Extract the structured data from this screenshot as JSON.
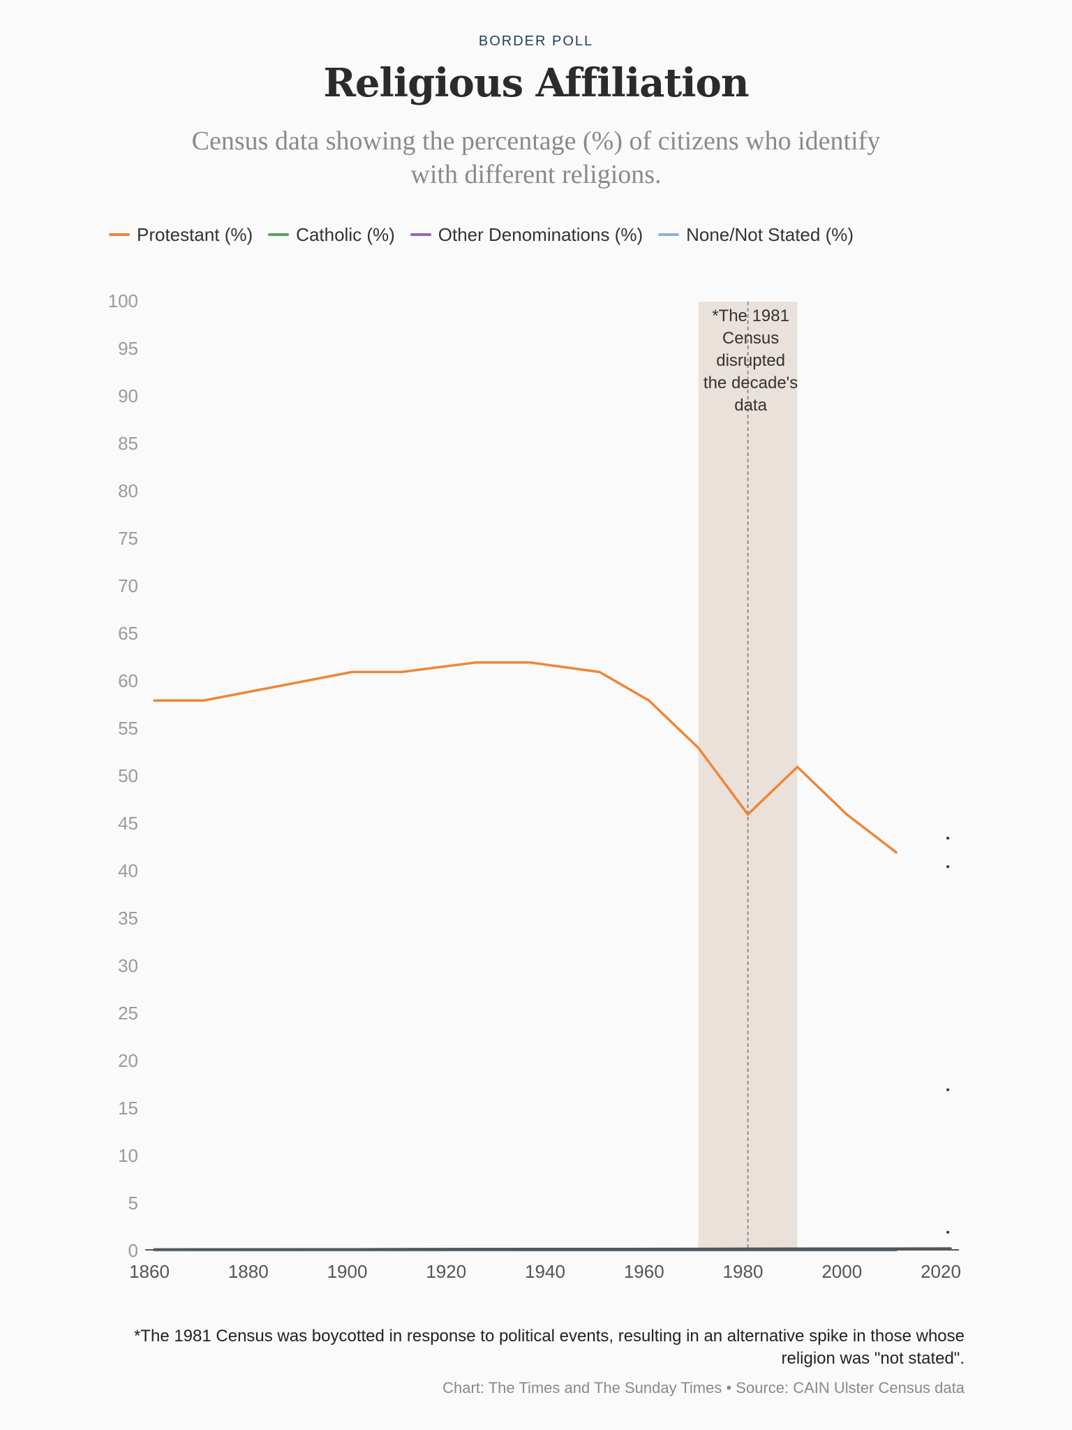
{
  "header": {
    "kicker": "BORDER POLL",
    "title": "Religious Affiliation",
    "subtitle": "Census data showing the percentage (%) of citizens who identify with different religions."
  },
  "footer": {
    "footnote": "*The 1981 Census was boycotted in response to political events, resulting in an alternative spike in those whose religion was \"not stated\".",
    "source": "Chart: The Times and The Sunday Times • Source: CAIN Ulster Census data"
  },
  "chart_data": {
    "type": "line",
    "title": "Religious Affiliation",
    "subtitle": "Census data showing the percentage (%) of citizens who identify with different religions.",
    "xlabel": "",
    "ylabel": "",
    "xlim": [
      1860,
      2022
    ],
    "ylim": [
      0,
      100
    ],
    "x_ticks": [
      "1860",
      "1880",
      "1900",
      "1920",
      "1940",
      "1960",
      "1980",
      "2000",
      "2020"
    ],
    "y_ticks": [
      "0",
      "5",
      "10",
      "15",
      "20",
      "25",
      "30",
      "35",
      "40",
      "45",
      "50",
      "55",
      "60",
      "65",
      "70",
      "75",
      "80",
      "85",
      "90",
      "95",
      "100"
    ],
    "grid": false,
    "legend_position": "top-left",
    "series": [
      {
        "name": "Protestant (%)",
        "color": "#ef8636",
        "x": [
          1861,
          1871,
          1881,
          1891,
          1901,
          1911,
          1926,
          1937,
          1951,
          1961,
          1971,
          1981,
          1991,
          2001,
          2011
        ],
        "values": [
          58,
          58,
          59,
          60,
          61,
          61,
          62,
          62,
          61,
          58,
          53,
          46,
          51,
          46,
          42
        ]
      },
      {
        "name": "Catholic (%)",
        "color": "#5ea05e",
        "x": [
          1861,
          2022
        ],
        "values": [
          0.2,
          0.3
        ]
      },
      {
        "name": "Other Denominations (%)",
        "color": "#9467bd",
        "x": [
          1861,
          2022
        ],
        "values": [
          0.2,
          0.3
        ]
      },
      {
        "name": "None/Not Stated (%)",
        "color": "#8ab4dc",
        "x": [
          1861,
          2011
        ],
        "values": [
          0.1,
          0.1
        ]
      }
    ],
    "annotation": {
      "label": "*The 1981 Census disrupted the decade's data",
      "lines": [
        "*The 1981",
        "Census",
        "disrupted",
        "the decade's",
        "data"
      ],
      "x": 1981,
      "band": [
        1971,
        1991
      ],
      "band_color": "#e9e1da"
    },
    "markers_2021": [
      {
        "x": 2021,
        "y": 43.5
      },
      {
        "x": 2021,
        "y": 40.5
      },
      {
        "x": 2021,
        "y": 17
      },
      {
        "x": 2021,
        "y": 2
      }
    ]
  }
}
